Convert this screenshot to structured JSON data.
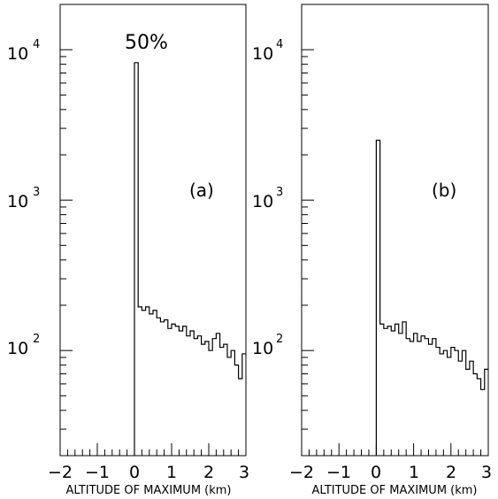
{
  "chart_data": [
    {
      "type": "histogram",
      "panel_label": "(a)",
      "annotation": "50%",
      "xlabel": "ALTITUDE OF MAXIMUM (km)",
      "ylabel": "",
      "xlim": [
        -2,
        3
      ],
      "ylim": [
        20,
        20000
      ],
      "yscale": "log",
      "grid": false,
      "x_tick_labels": [
        "−2",
        "−1",
        "0",
        "1",
        "2",
        "3"
      ],
      "y_tick_labels": [
        {
          "base": "10",
          "exp": "4",
          "value": 10000
        },
        {
          "base": "10",
          "exp": "3",
          "value": 1000
        },
        {
          "base": "10",
          "exp": "2",
          "value": 100
        }
      ],
      "bin_width": 0.1,
      "bins_start": [
        0.0,
        0.1,
        0.2,
        0.3,
        0.4,
        0.5,
        0.6,
        0.7,
        0.8,
        0.9,
        1.0,
        1.1,
        1.2,
        1.3,
        1.4,
        1.5,
        1.6,
        1.7,
        1.8,
        1.9,
        2.0,
        2.1,
        2.2,
        2.3,
        2.4,
        2.5,
        2.6,
        2.7,
        2.8,
        2.9
      ],
      "values": [
        8200,
        195,
        185,
        195,
        175,
        185,
        165,
        155,
        160,
        140,
        150,
        145,
        135,
        145,
        125,
        135,
        120,
        125,
        110,
        115,
        100,
        120,
        130,
        105,
        110,
        90,
        100,
        80,
        65,
        95
      ]
    },
    {
      "type": "histogram",
      "panel_label": "(b)",
      "xlabel": "ALTITUDE OF MAXIMUM (km)",
      "ylabel": "",
      "xlim": [
        -2,
        3
      ],
      "ylim": [
        20,
        20000
      ],
      "yscale": "log",
      "grid": false,
      "x_tick_labels": [
        "−2",
        "−1",
        "0",
        "1",
        "2",
        "3"
      ],
      "y_tick_labels": [
        {
          "base": "10",
          "exp": "4",
          "value": 10000
        },
        {
          "base": "10",
          "exp": "3",
          "value": 1000
        },
        {
          "base": "10",
          "exp": "2",
          "value": 100
        }
      ],
      "bin_width": 0.1,
      "bins_start": [
        0.0,
        0.1,
        0.2,
        0.3,
        0.4,
        0.5,
        0.6,
        0.7,
        0.8,
        0.9,
        1.0,
        1.1,
        1.2,
        1.3,
        1.4,
        1.5,
        1.6,
        1.7,
        1.8,
        1.9,
        2.0,
        2.1,
        2.2,
        2.3,
        2.4,
        2.5,
        2.6,
        2.7,
        2.8,
        2.9
      ],
      "values": [
        2500,
        150,
        140,
        145,
        135,
        150,
        130,
        155,
        120,
        115,
        130,
        115,
        125,
        120,
        110,
        120,
        105,
        95,
        100,
        90,
        105,
        100,
        85,
        100,
        75,
        85,
        70,
        65,
        55,
        75
      ]
    }
  ]
}
